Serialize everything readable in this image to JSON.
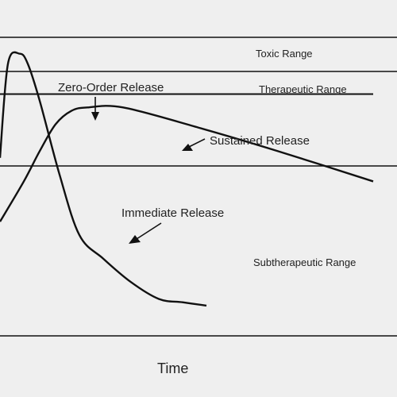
{
  "chart_data": {
    "type": "line",
    "title": "",
    "xlabel": "Time",
    "ylabel": "",
    "ranges": [
      {
        "name": "Toxic Range"
      },
      {
        "name": "Therapeutic Range"
      },
      {
        "name": "Subtherapeutic Range"
      }
    ],
    "series": [
      {
        "name": "Immediate Release",
        "points": [
          [
            0.0,
            0.53
          ],
          [
            0.02,
            0.81
          ],
          [
            0.05,
            0.84
          ],
          [
            0.07,
            0.81
          ],
          [
            0.1,
            0.7
          ],
          [
            0.15,
            0.48
          ],
          [
            0.2,
            0.3
          ],
          [
            0.26,
            0.23
          ],
          [
            0.33,
            0.16
          ],
          [
            0.4,
            0.11
          ],
          [
            0.46,
            0.1
          ],
          [
            0.52,
            0.09
          ]
        ]
      },
      {
        "name": "Sustained Release",
        "points": [
          [
            0.0,
            0.34
          ],
          [
            0.06,
            0.46
          ],
          [
            0.1,
            0.55
          ],
          [
            0.14,
            0.63
          ],
          [
            0.18,
            0.67
          ],
          [
            0.22,
            0.68
          ],
          [
            0.31,
            0.68
          ],
          [
            0.5,
            0.62
          ],
          [
            0.7,
            0.55
          ],
          [
            0.94,
            0.46
          ]
        ]
      },
      {
        "name": "Zero-Order Release",
        "points": [
          [
            0.0,
            0.72
          ],
          [
            0.94,
            0.72
          ]
        ]
      }
    ],
    "grid": false,
    "legend": "none"
  }
}
